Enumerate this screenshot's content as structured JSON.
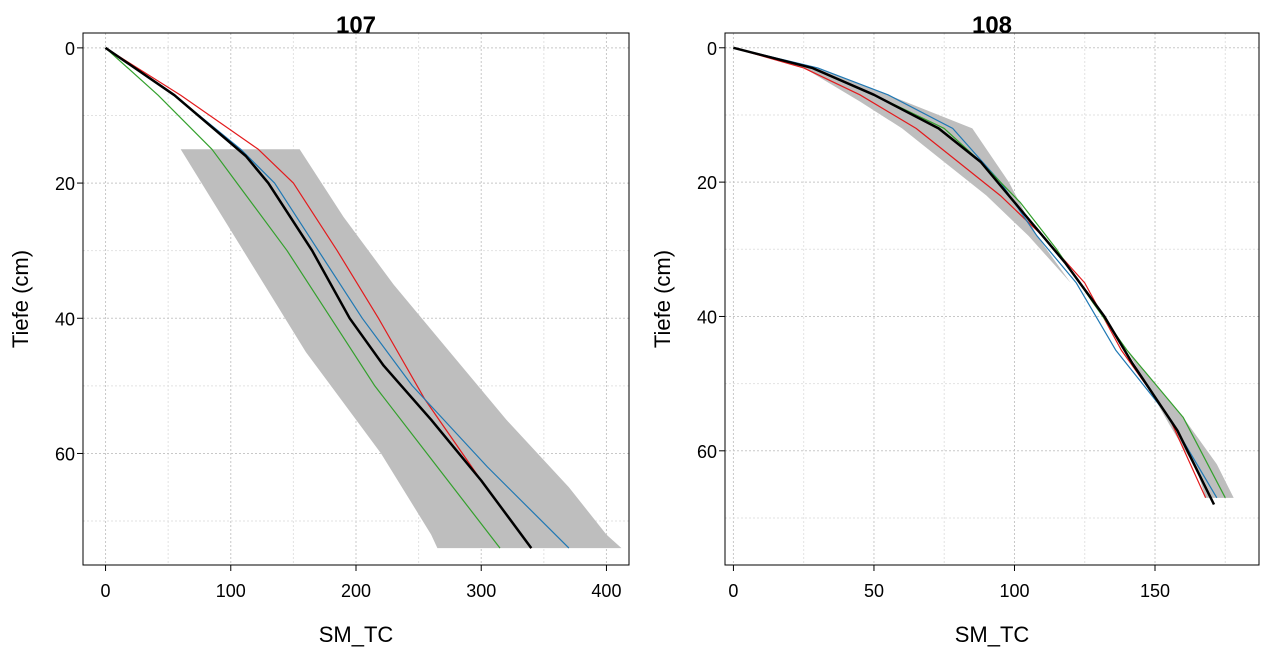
{
  "chart_data": [
    {
      "type": "line",
      "title": "107",
      "xlabel": "SM_TC",
      "ylabel": "Tiefe (cm)",
      "xlim": [
        -18,
        418
      ],
      "ylim": [
        76.5,
        -2.2
      ],
      "y_reversed": true,
      "xticks": [
        0,
        100,
        200,
        300,
        400
      ],
      "xtick_labels": [
        "0",
        "100",
        "200",
        "300",
        "400"
      ],
      "yticks": [
        0,
        20,
        40,
        60
      ],
      "ytick_labels": [
        "0",
        "20",
        "40",
        "60"
      ],
      "grid": true,
      "band": {
        "color": "#bebebe",
        "lower": [
          [
            60,
            15
          ],
          [
            110,
            30
          ],
          [
            160,
            45
          ],
          [
            220,
            60
          ],
          [
            260,
            72
          ],
          [
            265,
            74
          ]
        ],
        "upper": [
          [
            155,
            15
          ],
          [
            190,
            25
          ],
          [
            230,
            35
          ],
          [
            275,
            45
          ],
          [
            320,
            55
          ],
          [
            370,
            65
          ],
          [
            400,
            72
          ],
          [
            412,
            74
          ]
        ]
      },
      "series": [
        {
          "color": "#e31a1c",
          "points": [
            [
              0,
              0
            ],
            [
              60,
              7
            ],
            [
              122,
              15
            ],
            [
              150,
              20
            ],
            [
              185,
              30
            ],
            [
              218,
              40
            ],
            [
              255,
              52
            ],
            [
              300,
              64
            ],
            [
              340,
              74
            ]
          ]
        },
        {
          "color": "#1f78b4",
          "points": [
            [
              0,
              0
            ],
            [
              55,
              7
            ],
            [
              108,
              15
            ],
            [
              135,
              20
            ],
            [
              170,
              30
            ],
            [
              205,
              40
            ],
            [
              245,
              50
            ],
            [
              305,
              62
            ],
            [
              370,
              74
            ]
          ]
        },
        {
          "color": "#33a02c",
          "points": [
            [
              0,
              0
            ],
            [
              42,
              7
            ],
            [
              85,
              15
            ],
            [
              105,
              20
            ],
            [
              145,
              30
            ],
            [
              180,
              40
            ],
            [
              215,
              50
            ],
            [
              265,
              62
            ],
            [
              315,
              74
            ]
          ]
        },
        {
          "color": "#000000",
          "width": 2.5,
          "points": [
            [
              0,
              0
            ],
            [
              55,
              7
            ],
            [
              112,
              16
            ],
            [
              130,
              20
            ],
            [
              165,
              30
            ],
            [
              195,
              40
            ],
            [
              222,
              47
            ],
            [
              260,
              55
            ],
            [
              300,
              64
            ],
            [
              340,
              74
            ]
          ]
        }
      ]
    },
    {
      "type": "line",
      "title": "108",
      "xlabel": "SM_TC",
      "ylabel": "Tiefe (cm)",
      "xlim": [
        -3,
        187
      ],
      "ylim": [
        77,
        -2.2
      ],
      "y_reversed": true,
      "xticks": [
        0,
        50,
        100,
        150
      ],
      "xtick_labels": [
        "0",
        "50",
        "100",
        "150"
      ],
      "yticks": [
        0,
        20,
        40,
        60
      ],
      "ytick_labels": [
        "0",
        "20",
        "40",
        "60"
      ],
      "grid": true,
      "band": {
        "color": "#bebebe",
        "lower": [
          [
            0,
            0
          ],
          [
            25,
            3
          ],
          [
            45,
            8
          ],
          [
            60,
            12
          ],
          [
            75,
            17
          ],
          [
            90,
            22
          ],
          [
            105,
            28
          ],
          [
            120,
            35
          ],
          [
            140,
            45
          ],
          [
            155,
            56
          ],
          [
            165,
            63
          ],
          [
            168,
            67
          ]
        ],
        "upper": [
          [
            0,
            0
          ],
          [
            30,
            3
          ],
          [
            55,
            7
          ],
          [
            85,
            12
          ],
          [
            98,
            20
          ],
          [
            108,
            28
          ],
          [
            120,
            35
          ],
          [
            140,
            45
          ],
          [
            160,
            55
          ],
          [
            172,
            62
          ],
          [
            178,
            67
          ]
        ]
      },
      "series": [
        {
          "color": "#e31a1c",
          "points": [
            [
              0,
              0
            ],
            [
              25,
              3
            ],
            [
              45,
              7
            ],
            [
              65,
              12
            ],
            [
              80,
              17
            ],
            [
              95,
              22
            ],
            [
              110,
              28
            ],
            [
              125,
              35
            ],
            [
              138,
              45
            ],
            [
              155,
              55
            ],
            [
              168,
              67
            ]
          ]
        },
        {
          "color": "#1f78b4",
          "points": [
            [
              0,
              0
            ],
            [
              30,
              3
            ],
            [
              55,
              7
            ],
            [
              78,
              12
            ],
            [
              95,
              20
            ],
            [
              108,
              28
            ],
            [
              122,
              35
            ],
            [
              136,
              45
            ],
            [
              155,
              55
            ],
            [
              172,
              67
            ]
          ]
        },
        {
          "color": "#33a02c",
          "points": [
            [
              0,
              0
            ],
            [
              28,
              3
            ],
            [
              50,
              7
            ],
            [
              75,
              12
            ],
            [
              88,
              17
            ],
            [
              102,
              23
            ],
            [
              115,
              30
            ],
            [
              128,
              38
            ],
            [
              140,
              45
            ],
            [
              160,
              55
            ],
            [
              175,
              67
            ]
          ]
        },
        {
          "color": "#000000",
          "width": 2.5,
          "points": [
            [
              0,
              0
            ],
            [
              28,
              3
            ],
            [
              50,
              7
            ],
            [
              73,
              12
            ],
            [
              88,
              17
            ],
            [
              102,
              24
            ],
            [
              118,
              32
            ],
            [
              132,
              40
            ],
            [
              142,
              47
            ],
            [
              158,
              57
            ],
            [
              171,
              68
            ]
          ]
        }
      ]
    }
  ]
}
